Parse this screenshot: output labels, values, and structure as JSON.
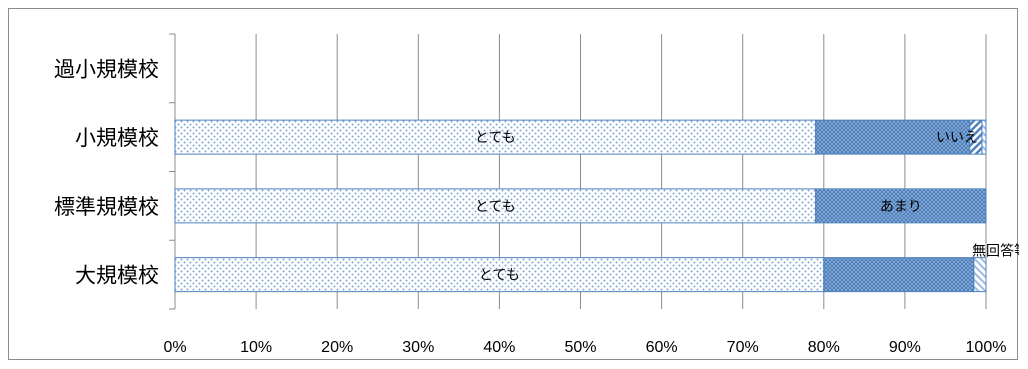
{
  "chart_data": {
    "type": "bar",
    "orientation": "horizontal",
    "stacked": true,
    "percent": true,
    "categories": [
      "過小規模校",
      "小規模校",
      "標準規模校",
      "大規模校"
    ],
    "series": [
      {
        "name": "とても",
        "values": [
          0,
          79,
          79,
          80
        ],
        "pattern": "dots-light",
        "color": "#7ea7d8"
      },
      {
        "name": "あまり",
        "values": [
          0,
          19,
          21,
          18.5
        ],
        "pattern": "dots-dark",
        "color": "#4f81bd"
      },
      {
        "name": "いいえ",
        "values": [
          0,
          1.5,
          0,
          0
        ],
        "pattern": "diagonal",
        "color": "#4f81bd"
      },
      {
        "name": "無回答等",
        "values": [
          0,
          0.5,
          0,
          1.5
        ],
        "pattern": "diagonal-light",
        "color": "#9dbbe0"
      }
    ],
    "data_labels": [
      {
        "category": "小規模校",
        "series": "とても",
        "text": "とても"
      },
      {
        "category": "小規模校",
        "series": "いいえ",
        "text": "いいえ"
      },
      {
        "category": "標準規模校",
        "series": "とても",
        "text": "とても"
      },
      {
        "category": "標準規模校",
        "series": "あまり",
        "text": "あまり"
      },
      {
        "category": "大規模校",
        "series": "とても",
        "text": "とても"
      },
      {
        "category": "大規模校",
        "series": "無回答等",
        "text": "無回答等"
      }
    ],
    "x_ticks": [
      "0%",
      "10%",
      "20%",
      "30%",
      "40%",
      "50%",
      "60%",
      "70%",
      "80%",
      "90%",
      "100%"
    ],
    "xlim": [
      0,
      100
    ],
    "grid": true,
    "legend": "none",
    "title": "",
    "xlabel": "",
    "ylabel": ""
  }
}
